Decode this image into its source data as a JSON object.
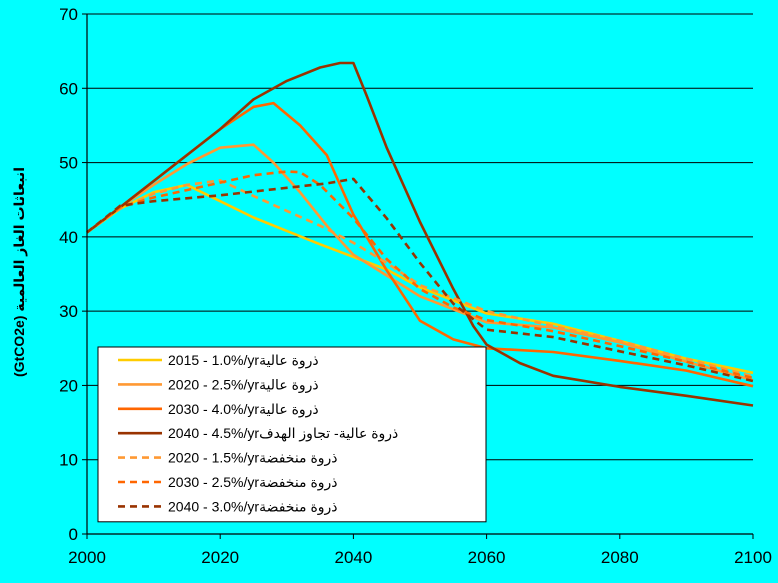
{
  "chart_data": {
    "type": "line",
    "title": "",
    "xlabel": "",
    "ylabel": "(GtCO2e) انبعاثات الغاز العالمية",
    "xlim": [
      2000,
      2100
    ],
    "ylim": [
      0,
      70
    ],
    "xticks": [
      "2000",
      "2020",
      "2040",
      "2060",
      "2080",
      "2100"
    ],
    "yticks": [
      "0",
      "10",
      "20",
      "30",
      "40",
      "50",
      "60",
      "70"
    ],
    "grid": "horizontal",
    "legend_position": "bottom-left",
    "plot_background": "#00FFFF",
    "series": [
      {
        "name": "2015 - 1.0%/yrذروة عالية",
        "color": "#FFCC00",
        "dash": "solid",
        "points": [
          [
            2000,
            40.6
          ],
          [
            2005,
            43.8
          ],
          [
            2010,
            46.0
          ],
          [
            2015,
            47.0
          ],
          [
            2020,
            44.8
          ],
          [
            2025,
            42.6
          ],
          [
            2030,
            40.8
          ],
          [
            2035,
            39.0
          ],
          [
            2040,
            37.3
          ],
          [
            2045,
            35.6
          ],
          [
            2050,
            33.2
          ],
          [
            2060,
            29.7
          ],
          [
            2070,
            28.3
          ],
          [
            2080,
            26.0
          ],
          [
            2090,
            23.6
          ],
          [
            2100,
            21.7
          ]
        ]
      },
      {
        "name": "2020 - 2.5%/yrذروة عالية",
        "color": "#FF9933",
        "dash": "solid",
        "points": [
          [
            2000,
            40.6
          ],
          [
            2005,
            44.0
          ],
          [
            2010,
            47.0
          ],
          [
            2015,
            49.8
          ],
          [
            2020,
            52.0
          ],
          [
            2025,
            52.4
          ],
          [
            2028,
            50.0
          ],
          [
            2032,
            46.0
          ],
          [
            2036,
            41.5
          ],
          [
            2040,
            37.6
          ],
          [
            2045,
            34.8
          ],
          [
            2050,
            32.0
          ],
          [
            2060,
            28.5
          ],
          [
            2070,
            27.8
          ],
          [
            2080,
            25.8
          ],
          [
            2090,
            23.2
          ],
          [
            2100,
            20.7
          ]
        ]
      },
      {
        "name": "2030 - 4.0%/yrذروة عالية",
        "color": "#FF6600",
        "dash": "solid",
        "points": [
          [
            2000,
            40.6
          ],
          [
            2005,
            44.0
          ],
          [
            2010,
            47.5
          ],
          [
            2015,
            51.0
          ],
          [
            2020,
            54.5
          ],
          [
            2025,
            57.5
          ],
          [
            2028,
            58.0
          ],
          [
            2032,
            55.0
          ],
          [
            2036,
            51.0
          ],
          [
            2040,
            43.0
          ],
          [
            2045,
            35.5
          ],
          [
            2050,
            28.7
          ],
          [
            2055,
            26.2
          ],
          [
            2060,
            25.0
          ],
          [
            2070,
            24.5
          ],
          [
            2080,
            23.3
          ],
          [
            2090,
            22.0
          ],
          [
            2100,
            19.9
          ]
        ]
      },
      {
        "name": "2040 - 4.5%/yrذروة عالية- تجاوز الهدف",
        "color": "#993300",
        "dash": "solid",
        "points": [
          [
            2000,
            40.6
          ],
          [
            2005,
            44.0
          ],
          [
            2010,
            47.5
          ],
          [
            2015,
            51.0
          ],
          [
            2020,
            54.5
          ],
          [
            2025,
            58.5
          ],
          [
            2030,
            61.0
          ],
          [
            2035,
            62.8
          ],
          [
            2038,
            63.4
          ],
          [
            2040,
            63.4
          ],
          [
            2042,
            59.0
          ],
          [
            2045,
            52.0
          ],
          [
            2050,
            42.0
          ],
          [
            2055,
            33.0
          ],
          [
            2058,
            28.0
          ],
          [
            2060,
            25.5
          ],
          [
            2065,
            23.0
          ],
          [
            2070,
            21.3
          ],
          [
            2080,
            19.8
          ],
          [
            2090,
            18.6
          ],
          [
            2100,
            17.3
          ]
        ]
      },
      {
        "name": "2020 - 1.5%/yrذروة منخفضة",
        "color": "#FF9933",
        "dash": "dashed",
        "points": [
          [
            2000,
            40.6
          ],
          [
            2005,
            43.8
          ],
          [
            2010,
            45.8
          ],
          [
            2015,
            47.0
          ],
          [
            2020,
            47.6
          ],
          [
            2025,
            45.5
          ],
          [
            2030,
            43.5
          ],
          [
            2035,
            41.5
          ],
          [
            2040,
            39.2
          ],
          [
            2045,
            36.5
          ],
          [
            2050,
            33.5
          ],
          [
            2060,
            30.0
          ],
          [
            2070,
            28.0
          ],
          [
            2080,
            26.0
          ],
          [
            2090,
            23.6
          ],
          [
            2100,
            21.2
          ]
        ]
      },
      {
        "name": "2030 - 2.5%/yrذروة منخفضة",
        "color": "#FF6600",
        "dash": "dashed",
        "points": [
          [
            2000,
            40.6
          ],
          [
            2005,
            44.0
          ],
          [
            2010,
            45.3
          ],
          [
            2015,
            46.3
          ],
          [
            2020,
            47.3
          ],
          [
            2025,
            48.3
          ],
          [
            2030,
            48.8
          ],
          [
            2032,
            48.7
          ],
          [
            2035,
            47.0
          ],
          [
            2040,
            42.5
          ],
          [
            2045,
            37.0
          ],
          [
            2050,
            33.0
          ],
          [
            2055,
            30.5
          ],
          [
            2060,
            28.8
          ],
          [
            2070,
            27.3
          ],
          [
            2080,
            25.3
          ],
          [
            2090,
            23.2
          ],
          [
            2100,
            21.0
          ]
        ]
      },
      {
        "name": "2040 - 3.0%/yrذروة منخفضة",
        "color": "#993300",
        "dash": "dashed",
        "points": [
          [
            2000,
            40.6
          ],
          [
            2005,
            44.2
          ],
          [
            2010,
            44.8
          ],
          [
            2020,
            45.6
          ],
          [
            2030,
            46.6
          ],
          [
            2036,
            47.2
          ],
          [
            2040,
            47.8
          ],
          [
            2045,
            42.5
          ],
          [
            2050,
            36.5
          ],
          [
            2055,
            31.0
          ],
          [
            2060,
            27.5
          ],
          [
            2070,
            26.5
          ],
          [
            2080,
            24.6
          ],
          [
            2090,
            22.7
          ],
          [
            2100,
            20.6
          ]
        ]
      }
    ]
  }
}
